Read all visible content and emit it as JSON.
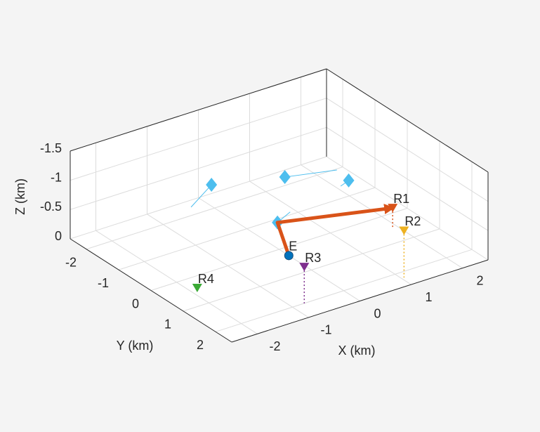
{
  "chart_data": {
    "type": "scatter3d",
    "xlabel": "X (km)",
    "ylabel": "Y (km)",
    "zlabel": "Z (km)",
    "xlim": [
      -2.5,
      2.5
    ],
    "ylim": [
      -2.5,
      2.5
    ],
    "zlim": [
      -1.5,
      0
    ],
    "z_reversed": true,
    "xticks": [
      -2,
      -1,
      0,
      1,
      2
    ],
    "yticks": [
      -2,
      -1,
      0,
      1,
      2
    ],
    "zticks": [
      0,
      -0.5,
      -1,
      -1.5
    ],
    "grid": true,
    "emitter": {
      "name": "E",
      "x": 0,
      "y": 0.3,
      "z": 0,
      "color": "#0072bd"
    },
    "receivers": [
      {
        "name": "R1",
        "x": 1.9,
        "y": 0.5,
        "z": -0.35,
        "color": "#d95319"
      },
      {
        "name": "R2",
        "x": 1.05,
        "y": 2.2,
        "z": -0.8,
        "color": "#edb120"
      },
      {
        "name": "R3",
        "x": -0.77,
        "y": 2.0,
        "z": -0.62,
        "color": "#7e2f8e"
      },
      {
        "name": "R4",
        "x": -1.85,
        "y": 0.4,
        "z": 0,
        "color": "#3aa935"
      }
    ],
    "targets": {
      "color": "#4dbeee",
      "x": [
        -0.19,
        -0.28,
        0.83,
        1.59
      ],
      "y": [
        0.25,
        -1.65,
        -1.14,
        -0.37
      ],
      "z": [
        -0.6,
        -0.6,
        -0.6,
        -0.6
      ],
      "vx": [
        0.38,
        -0.72,
        0.82,
        -0.22
      ],
      "vy": [
        -0.21,
        0.51,
        0.31,
        0.1
      ]
    },
    "path": {
      "color": "#d95319",
      "x": [
        0,
        -0.19,
        1.9
      ],
      "y": [
        0.3,
        0.25,
        0.5
      ],
      "z": [
        0,
        -0.6,
        -0.35
      ]
    }
  }
}
